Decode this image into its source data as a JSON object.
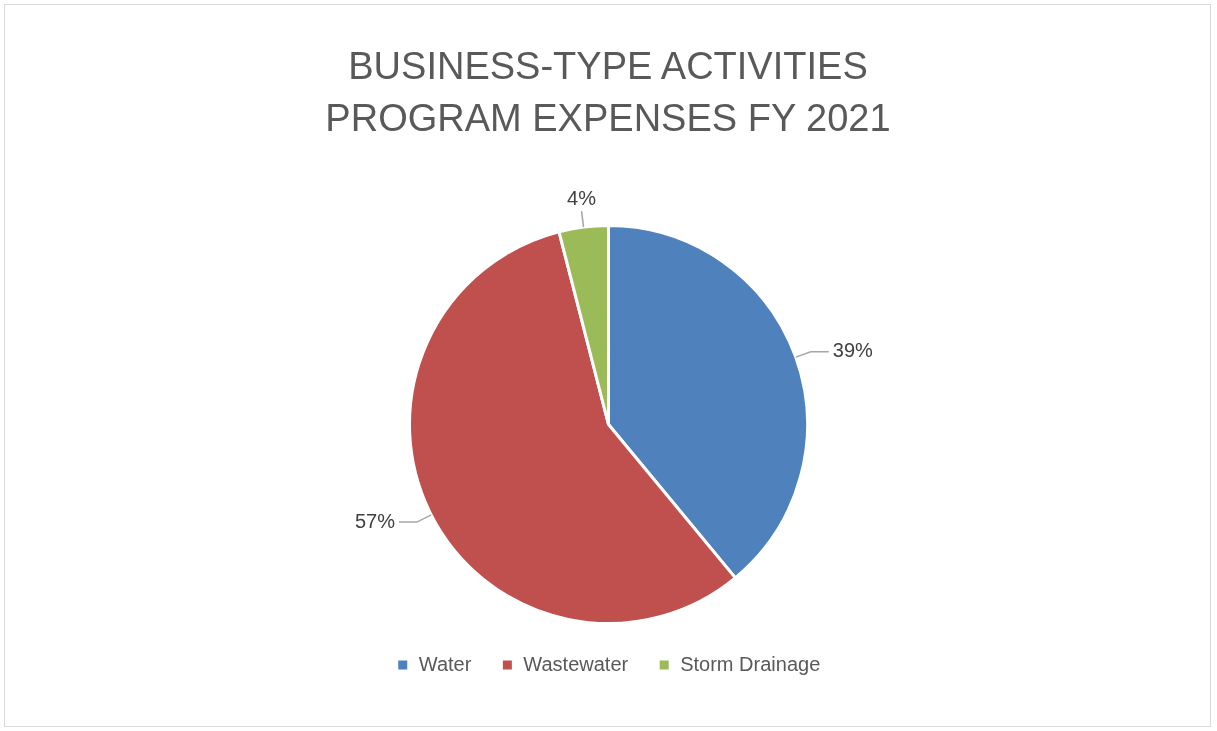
{
  "chart_data": {
    "type": "pie",
    "title": "BUSINESS-TYPE ACTIVITIES PROGRAM EXPENSES FY 2021",
    "categories": [
      "Water",
      "Wastewater",
      "Storm Drainage"
    ],
    "values": [
      39,
      57,
      4
    ],
    "value_labels": [
      "39%",
      "57%",
      "4%"
    ],
    "colors": [
      "#4f81bd",
      "#c0504d",
      "#9bbb59"
    ],
    "legend": "bottom"
  }
}
